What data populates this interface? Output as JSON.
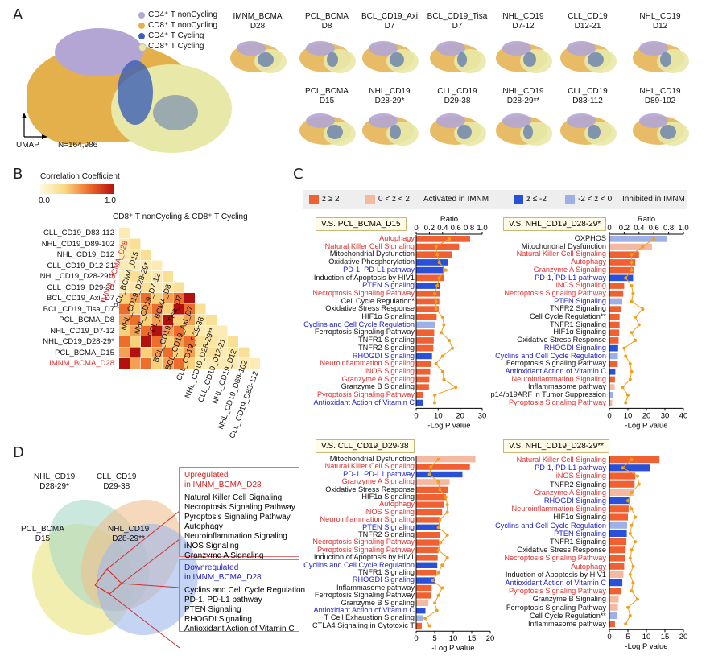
{
  "panels": {
    "a": "A",
    "b": "B",
    "c": "C",
    "d": "D"
  },
  "colors": {
    "cd4_nc": "#b3a6d4",
    "cd8_nc": "#e4b04c",
    "cd4_c": "#3b5fb5",
    "cd8_c": "#e8e8a8",
    "up_strong": "#f06030",
    "up_weak": "#f5b8a0",
    "dn_strong": "#2a4fd8",
    "dn_weak": "#9fb0e8",
    "line": "#f0a020",
    "red_text": "#e03030",
    "blue_text": "#2020c8"
  },
  "umap": {
    "legend": [
      "CD4⁺ T nonCycling",
      "CD8⁺ T nonCycling",
      "CD4⁺ T Cycling",
      "CD8⁺ T Cycling"
    ],
    "axis_label": "UMAP",
    "n_label": "N=164,986",
    "samples_row1": [
      "IMNM_BCMA\nD28",
      "PCL_BCMA\nD8",
      "BCL_CD19_Axi\nD7",
      "BCL_CD19_Tisa\nD7",
      "NHL_CD19\nD7-12",
      "CLL_CD19\nD12-21",
      "NHL_CD19\nD12"
    ],
    "samples_row2": [
      "PCL_BCMA\nD15",
      "NHL_CD19\nD28-29*",
      "CLL_CD19\nD29-38",
      "NHL_CD19\nD28-29**",
      "CLL_CD19\nD83-112",
      "NHL_CD19\nD89-102"
    ]
  },
  "heatmap": {
    "cbar_title": "Correlation Coefficient",
    "cbar_min": "0.0",
    "cbar_max": "1.0",
    "header": "CD8⁺ T nonCycling  & CD8⁺ T Cycling",
    "row_labels": [
      "CLL_CD19_D83-112",
      "NHL_CD19_D89-102",
      "NHL_CD19_D12",
      "CLL_CD19_D12-21",
      "NHL_CD19_D28-29**",
      "CLL_CD19_D29-38",
      "BCL_CD19_Axi_D7",
      "BCL_CD19_Tisa_D7",
      "PCL_BCMA_D8",
      "NHL_CD19_D7-12",
      "NHL_CD19_D28-29*",
      "PCL_BCMA_D15",
      "IMNM_BCMA_D28"
    ],
    "col_labels": [
      "IMNM_BCMA_D28",
      "PCL_BCMA_D15",
      "NHL_CD19_D28-29*",
      "NHL_CD19_D7-12",
      "PCL_BCMA_D8",
      "BCL_CD19_Tisa_D7",
      "BCL_CD19_Axi_D7",
      "CLL_CD19_D29-38",
      "NHL_CD19_D28-29**",
      "CLL_CD19_D12-21",
      "NHL_CD19_D12",
      "NHL_CD19_D89-102",
      "CLL_CD19_D83-112"
    ]
  },
  "c_legend": {
    "a": "z ≥ 2",
    "b": "0 < z < 2",
    "c": "Activated in IMNM",
    "d": "z ≤ -2",
    "e": "-2 < z < 0",
    "f": "Inhibited in IMNM"
  },
  "chart_data": [
    {
      "type": "bar",
      "title": "V.S. PCL_BCMA_D15",
      "xlabel": "-Log P value",
      "top_axis": "Ratio",
      "ticks_bottom": [
        "0",
        "10",
        "20",
        "30"
      ],
      "ticks_top": [
        "0",
        "0.2",
        "0.4",
        "0.6",
        "0.8",
        "1.0"
      ],
      "xlim": [
        0,
        30
      ],
      "ratio_lim": [
        0,
        1
      ],
      "categories": [
        "Autophagy",
        "Natural Killer Cell Signaling",
        "Mitochondrial Dysfunction",
        "Oxidative Phosphorylation",
        "PD-1, PD-L1 pathway",
        "Induction of Apoptosis by HIV1",
        "PTEN Signaling",
        "Necroptosis Signaling Pathway",
        "Cell Cycle Regulation*",
        "Oxidative Stress Response",
        "HIF1α Signaling",
        "Cyclins and Cell Cycle Regulation",
        "Ferroptosis Signaling Pathway",
        "TNFR1 Signaling",
        "TNFR2 Signaling",
        "RHOGDI Signaling",
        "Neuroinflammation Signaling",
        "iNOS Signaling",
        "Granzyme A Signaling",
        "Granzyme B Signaling",
        "Pyroptosis Signaling Pathway",
        "Antioxidant Action of Vitamin C"
      ],
      "colors": [
        "up_strong",
        "up_strong",
        "up_strong",
        "dn_strong",
        "dn_strong",
        "up_strong",
        "dn_strong",
        "up_strong",
        "up_strong",
        "up_strong",
        "up_strong",
        "dn_weak",
        "up_strong",
        "up_strong",
        "up_strong",
        "dn_strong",
        "up_strong",
        "up_strong",
        "up_strong",
        "up_strong",
        "up_strong",
        "dn_strong"
      ],
      "text_colors": [
        "red",
        "red",
        "black",
        "black",
        "blue",
        "black",
        "blue",
        "red",
        "black",
        "black",
        "black",
        "blue",
        "black",
        "black",
        "black",
        "blue",
        "red",
        "red",
        "red",
        "black",
        "red",
        "blue"
      ],
      "values": [
        24.5,
        19.5,
        16.2,
        14.5,
        12.3,
        12.5,
        11,
        10.8,
        10.5,
        10.2,
        9.3,
        8.5,
        8.2,
        8,
        7.8,
        7.2,
        6.8,
        6.4,
        6,
        5.8,
        3.3,
        3
      ],
      "ratio": [
        0.5,
        0.3,
        0.32,
        0.35,
        0.45,
        0.35,
        0.32,
        0.28,
        0.3,
        0.3,
        0.4,
        0.42,
        0.38,
        0.5,
        0.55,
        0.4,
        0.3,
        0.4,
        0.42,
        0.6,
        0.28,
        0.28
      ]
    },
    {
      "type": "bar",
      "title": "V.S. NHL_CD19_D28-29*",
      "xlabel": "-Log P value",
      "top_axis": "Ratio",
      "ticks_bottom": [
        "0",
        "10",
        "20",
        "30",
        "40"
      ],
      "ticks_top": [
        "0",
        "0.2",
        "0.4",
        "0.6",
        "0.8",
        "1.0"
      ],
      "xlim": [
        0,
        40
      ],
      "ratio_lim": [
        0,
        1
      ],
      "categories": [
        "OXPHOS",
        "Mitochondrial Dysfunction",
        "Natural Killer Cell Signaling",
        "Autophagy",
        "Granzyme A Signaling",
        "PD-1, PD-L1 pathway",
        "iNOS Signaling",
        "Necroptosis Signaling Pathway",
        "PTEN Signaling",
        "TNFR2 Signaling",
        "Cell Cycle Regulation**",
        "TNFR1 Signaling",
        "HIF1α Signaling",
        "Oxidative Stress Response",
        "RHOGDI Signaling",
        "Cyclins and Cell Cycle Regulation",
        "Ferroptosis Signaling Pathway",
        "Antioxidant Action of Vitamin C",
        "Neuroinflammation Signaling",
        "Inflammasome pathway",
        "p14/p19ARF in Tumor Suppression",
        "Pyroptosis Signaling Pathway"
      ],
      "colors": [
        "dn_weak",
        "up_weak",
        "up_strong",
        "up_strong",
        "up_strong",
        "dn_strong",
        "up_strong",
        "up_strong",
        "dn_weak",
        "up_strong",
        "up_strong",
        "up_strong",
        "up_strong",
        "up_strong",
        "dn_strong",
        "dn_weak",
        "up_strong",
        "dn_strong",
        "up_strong",
        "up_weak",
        "dn_weak",
        "up_weak"
      ],
      "text_colors": [
        "black",
        "black",
        "red",
        "red",
        "red",
        "blue",
        "red",
        "red",
        "blue",
        "black",
        "black",
        "black",
        "black",
        "black",
        "blue",
        "blue",
        "black",
        "blue",
        "red",
        "black",
        "black",
        "red"
      ],
      "values": [
        31,
        23,
        16,
        14,
        13,
        12.8,
        8,
        7.5,
        7,
        6.5,
        5.5,
        5.5,
        5.3,
        5,
        4.7,
        4.6,
        4.5,
        3.2,
        3,
        2.8,
        2,
        1.5
      ],
      "ratio": [
        0.6,
        0.45,
        0.3,
        0.3,
        0.3,
        0.22,
        0.3,
        0.32,
        0.3,
        0.45,
        0.35,
        0.4,
        0.3,
        0.35,
        0.2,
        0.22,
        0.28,
        0.3,
        0.28,
        0.18,
        0.25,
        0.22
      ]
    },
    {
      "type": "bar",
      "title": "V.S. CLL_CD19_D29-38",
      "xlabel": "-Log P value",
      "top_axis": "",
      "ticks_bottom": [
        "0",
        "5",
        "10",
        "15",
        "20"
      ],
      "ticks_top": [],
      "xlim": [
        0,
        20
      ],
      "ratio_lim": [
        0,
        1
      ],
      "categories": [
        "Mitochondrial Dysfunction",
        "Natural Killer Cell Signaling",
        "PD-1, PD-L1 pathway",
        "Granzyme A Signaling",
        "Oxidative Stress Response",
        "HIF1α Signaling",
        "Autophagy",
        "iNOS Signaling",
        "Neuroinflammation Signaling",
        "PTEN Signaling",
        "TNFR2 Signaling",
        "Necroptosis Signaling Pathway",
        "Pyroptosis Signaling Pathway",
        "Induction of Apoptosis by HIV1",
        "Cyclins and Cell Cycle Regulation",
        "TNFR1 Signaling",
        "RHOGDI Signaling",
        "Inflammasome pathway",
        "Ferroptosis Signaling Pathway",
        "Granzyme B Signaling",
        "Antioxidant Action of Vitamin C",
        "T Cell Exhaustion Signaling",
        "CTLA4 Signaling in Cytotoxic T"
      ],
      "colors": [
        "up_weak",
        "up_strong",
        "dn_strong",
        "up_weak",
        "up_strong",
        "up_strong",
        "up_strong",
        "up_strong",
        "up_strong",
        "dn_strong",
        "up_strong",
        "up_strong",
        "up_strong",
        "up_strong",
        "dn_strong",
        "up_strong",
        "dn_strong",
        "up_strong",
        "up_strong",
        "up_weak",
        "dn_strong",
        "dn_weak",
        "up_strong"
      ],
      "text_colors": [
        "black",
        "red",
        "blue",
        "red",
        "black",
        "black",
        "red",
        "red",
        "red",
        "blue",
        "black",
        "red",
        "red",
        "black",
        "blue",
        "black",
        "blue",
        "black",
        "black",
        "black",
        "blue",
        "black",
        "black"
      ],
      "values": [
        16,
        14.5,
        12.5,
        9,
        8.5,
        8,
        7.5,
        7,
        6.5,
        6.5,
        6.3,
        6.2,
        6,
        5.8,
        5.7,
        5.5,
        5,
        4.2,
        4,
        3.3,
        2.5,
        1.8,
        1.5
      ],
      "ratio": [
        0.3,
        0.2,
        0.18,
        0.3,
        0.32,
        0.4,
        0.42,
        0.42,
        0.32,
        0.3,
        0.42,
        0.33,
        0.3,
        0.42,
        0.35,
        0.3,
        0.22,
        0.35,
        0.3,
        0.25,
        0.28,
        0.12,
        0.18
      ]
    },
    {
      "type": "bar",
      "title": "V.S. NHL_CD19_D28-29**",
      "xlabel": "-Log P value",
      "top_axis": "",
      "ticks_bottom": [
        "0",
        "5",
        "10",
        "15",
        "20"
      ],
      "ticks_top": [],
      "xlim": [
        0,
        20
      ],
      "ratio_lim": [
        0,
        1
      ],
      "categories": [
        "Natural Killer Cell Signaling",
        "PD-1, PD-L1 pathway",
        "iNOS Signaling",
        "TNFR2 Signaling",
        "Granzyme A Signaling",
        "RHOGDI Signaling",
        "Neuroinflammation Signaling",
        "HIF1α Signaling",
        "Cyclins and Cell Cycle Regulation",
        "PTEN Signaling",
        "TNFR1 Signaling",
        "Oxidative Stress Response",
        "Necroptosis Signaling Pathway",
        "Autophagy",
        "Induction of Apoptosis by HIV1",
        "Antioxidant Action of Vitamin C",
        "Pyroptosis Signaling Pathway",
        "Granzyme B Signaling",
        "Ferroptosis Signaling Pathway",
        "Cell Cycle Regulation**",
        "Inflammasome pathway"
      ],
      "colors": [
        "up_strong",
        "dn_strong",
        "up_strong",
        "up_strong",
        "up_weak",
        "dn_strong",
        "up_strong",
        "up_strong",
        "dn_weak",
        "dn_strong",
        "up_strong",
        "up_strong",
        "up_strong",
        "up_strong",
        "up_weak",
        "dn_strong",
        "up_strong",
        "up_weak",
        "up_weak",
        "dn_weak",
        "up_strong"
      ],
      "text_colors": [
        "red",
        "blue",
        "red",
        "black",
        "red",
        "blue",
        "red",
        "black",
        "blue",
        "blue",
        "black",
        "black",
        "red",
        "red",
        "black",
        "blue",
        "red",
        "black",
        "black",
        "black",
        "black"
      ],
      "values": [
        13.5,
        11,
        7,
        6.8,
        6.5,
        5.5,
        5.2,
        5,
        4.8,
        4.7,
        4.6,
        4.4,
        4.2,
        4,
        3.8,
        3.5,
        3.2,
        2.5,
        2.3,
        2.2,
        1.5
      ],
      "ratio": [
        0.3,
        0.18,
        0.38,
        0.4,
        0.3,
        0.25,
        0.3,
        0.35,
        0.3,
        0.28,
        0.35,
        0.3,
        0.28,
        0.32,
        0.28,
        0.32,
        0.3,
        0.38,
        0.25,
        0.28,
        0.22
      ]
    }
  ],
  "venn": {
    "labels": {
      "pcl": "PCL_BCMA\nD15",
      "nhl1": "NHL_CD19\nD28-29*",
      "cll": "CLL_CD19\nD29-38",
      "nhl2": "NHL_CD19\nD28-29**"
    },
    "up_title": "Upregulated\nin IMNM_BCMA_D28",
    "up_items": [
      "Natural Killer Cell Signaling",
      "Necroptosis Signaling Pathway",
      "Pyroptosis Signaling Pathway",
      "Autophagy",
      "Neuroinflammation Signaling",
      "iNOS Signaling",
      "Granzyme A Signaling"
    ],
    "down_title": "Downregulated\nin IMNM_BCMA_D28",
    "down_items": [
      "Cyclins and Cell Cycle Regulation",
      "PD-1, PD-L1 pathway",
      "PTEN Signaling",
      "RHOGDI Signaling",
      "Antioxidant Action of Vitamin C"
    ]
  }
}
